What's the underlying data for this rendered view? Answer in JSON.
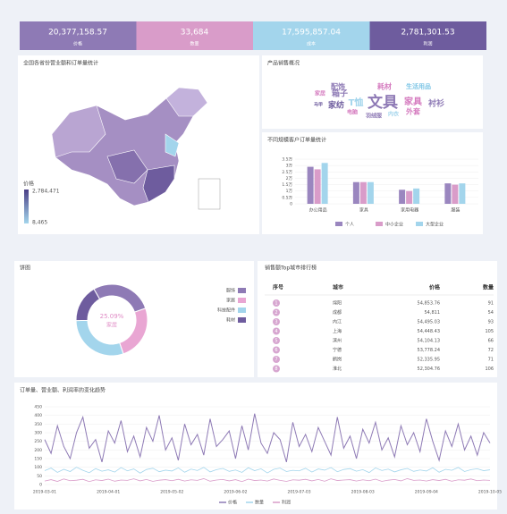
{
  "kpis": [
    {
      "value": "20,377,158.57",
      "label": "价格",
      "color": "#8e7ab5"
    },
    {
      "value": "33,684",
      "label": "数量",
      "color": "#d99cc9"
    },
    {
      "value": "17,595,857.04",
      "label": "成本",
      "color": "#a3d5ec"
    },
    {
      "value": "2,781,301.53",
      "label": "利润",
      "color": "#6e5c9e"
    }
  ],
  "map": {
    "title": "全国各省份营业额和订单量统计",
    "legend_title": "价格",
    "max": {
      "value": 2784471,
      "label": "2,784,471"
    },
    "min": {
      "value": 8465,
      "label": "8,465"
    }
  },
  "word_cloud": {
    "title": "产品销售概况",
    "words": [
      "配饰",
      "耗材",
      "生活用品",
      "家居",
      "箱子",
      "T恤",
      "文具",
      "家具",
      "衬衫",
      "马甲",
      "家纺",
      "外套",
      "电脑",
      "羽绒服",
      "内衣"
    ]
  },
  "table": {
    "title": "销售额Top城市排行榜",
    "columns": [
      "序号",
      "城市",
      "价格",
      "数量"
    ],
    "rows": [
      [
        "1",
        "绵阳",
        "54,853.76",
        "91"
      ],
      [
        "2",
        "成都",
        "54,811",
        "54"
      ],
      [
        "3",
        "内江",
        "54,495.03",
        "93"
      ],
      [
        "4",
        "上海",
        "54,448.43",
        "105"
      ],
      [
        "5",
        "滨州",
        "54,104.13",
        "66"
      ],
      [
        "6",
        "宁德",
        "53,778.24",
        "72"
      ],
      [
        "7",
        "鹤岗",
        "52,335.95",
        "71"
      ],
      [
        "8",
        "淮北",
        "52,304.76",
        "106"
      ]
    ]
  },
  "chart_data": [
    {
      "type": "bar",
      "title": "不同规模客户订单量统计",
      "categories": [
        "办公用品",
        "家具",
        "家用电器",
        "服装"
      ],
      "series": [
        {
          "name": "个人",
          "color": "#9a86bf",
          "values": [
            2.9,
            1.7,
            1.1,
            1.6
          ]
        },
        {
          "name": "中小企业",
          "color": "#d99cc9",
          "values": [
            2.7,
            1.7,
            1.0,
            1.5
          ]
        },
        {
          "name": "大型企业",
          "color": "#a3d5ec",
          "values": [
            3.2,
            1.7,
            1.2,
            1.6
          ]
        }
      ],
      "ylim": [
        0,
        3.5
      ],
      "yticks": [
        0,
        {
          "value": 0.5,
          "label": "0.5万"
        },
        {
          "value": 1,
          "label": "1万"
        },
        {
          "value": 1.5,
          "label": "1.5万"
        },
        {
          "value": 2,
          "label": "2万"
        },
        {
          "value": 2.5,
          "label": "2.5万"
        },
        {
          "value": 3,
          "label": "3万"
        },
        {
          "value": 3.5,
          "label": "3.5万"
        }
      ],
      "grid": true
    },
    {
      "type": "pie",
      "title": "饼图",
      "categories": [
        "服饰",
        "家居",
        "科技配件",
        "耗材"
      ],
      "values": [
        28,
        25.09,
        30,
        16.91
      ],
      "colors": [
        "#8e7ab5",
        "#e9a6d3",
        "#a3d5ec",
        "#6e5c9e"
      ],
      "center_text": "25.09%",
      "center_subtext": "家居"
    },
    {
      "type": "line",
      "title": "订单量、营业额、利润率的变化趋势",
      "categories": [
        "2019-03-01",
        null,
        null,
        null,
        null,
        null,
        null,
        null,
        null,
        null,
        "2019-04-01",
        null,
        null,
        null,
        null,
        null,
        null,
        null,
        null,
        null,
        "2019-05-02",
        null,
        null,
        null,
        null,
        null,
        null,
        null,
        null,
        null,
        "2019-06-02",
        null,
        null,
        null,
        null,
        null,
        null,
        null,
        null,
        null,
        "2019-07-03",
        null,
        null,
        null,
        null,
        null,
        null,
        null,
        null,
        null,
        "2019-08-03",
        null,
        null,
        null,
        null,
        null,
        null,
        null,
        null,
        null,
        "2019-09-04",
        null,
        null,
        null,
        null,
        null,
        null,
        null,
        null,
        null,
        "2019-10-05"
      ],
      "series": [
        {
          "name": "价格",
          "color": "#8e7ab5",
          "values": [
            260,
            180,
            340,
            220,
            150,
            300,
            390,
            210,
            260,
            130,
            310,
            240,
            370,
            190,
            280,
            160,
            330,
            250,
            400,
            200,
            270,
            140,
            350,
            230,
            290,
            170,
            380,
            220,
            260,
            310,
            150,
            340,
            200,
            410,
            240,
            180,
            300,
            260,
            130,
            360,
            220,
            290,
            190,
            330,
            250,
            170,
            390,
            210,
            280,
            150,
            320,
            240,
            360,
            200,
            270,
            160,
            340,
            230,
            300,
            190,
            380,
            250,
            140,
            310,
            220,
            350,
            200,
            280,
            170,
            300,
            240
          ]
        },
        {
          "name": "数量",
          "color": "#a3d5ec",
          "values": [
            80,
            95,
            70,
            88,
            75,
            100,
            82,
            68,
            92,
            77,
            85,
            72,
            98,
            79,
            90,
            66,
            87,
            94,
            74,
            83,
            78,
            96,
            71,
            89,
            81,
            99,
            73,
            86,
            93,
            76,
            84,
            70,
            97,
            80,
            91,
            67,
            88,
            95,
            75,
            82,
            79,
            94,
            72,
            90,
            83,
            98,
            74,
            87,
            92,
            77,
            86,
            69,
            96,
            81,
            89,
            73,
            85,
            93,
            76,
            84,
            78,
            97,
            71,
            88,
            82,
            99,
            75,
            86,
            91,
            80,
            85
          ]
        },
        {
          "name": "利润",
          "color": "#d99cc9",
          "values": [
            20,
            28,
            18,
            32,
            22,
            25,
            30,
            17,
            27,
            23,
            31,
            19,
            26,
            24,
            33,
            21,
            29,
            18,
            25,
            28,
            22,
            30,
            20,
            27,
            24,
            34,
            19,
            26,
            29,
            21,
            28,
            17,
            31,
            23,
            26,
            20,
            32,
            24,
            18,
            27,
            25,
            30,
            21,
            29,
            19,
            33,
            23,
            26,
            28,
            20,
            27,
            22,
            31,
            18,
            25,
            29,
            21,
            34,
            24,
            26,
            20,
            28,
            23,
            30,
            19,
            27,
            25,
            32,
            22,
            26,
            24
          ]
        }
      ],
      "ylim": [
        0,
        450
      ],
      "yticks": [
        0,
        50,
        100,
        150,
        200,
        250,
        300,
        350,
        400,
        450
      ],
      "grid": true
    }
  ]
}
